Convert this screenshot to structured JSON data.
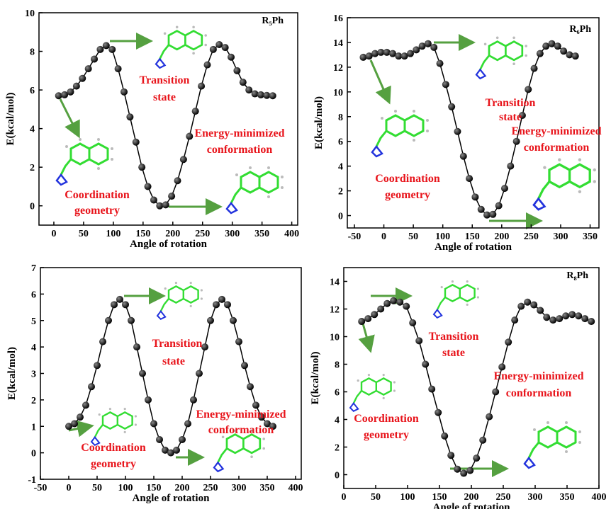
{
  "chart_data": [
    {
      "type": "line",
      "title": "R₅Ph",
      "x_label": "Angle of rotation",
      "y_label": "E(kcal/mol)",
      "x": [
        8,
        18,
        28,
        38,
        48,
        58,
        68,
        78,
        88,
        98,
        108,
        118,
        128,
        138,
        148,
        158,
        168,
        178,
        188,
        198,
        208,
        218,
        228,
        238,
        248,
        258,
        268,
        278,
        288,
        298,
        308,
        318,
        328,
        338,
        348,
        358,
        368
      ],
      "values": [
        5.7,
        5.75,
        5.9,
        6.2,
        6.6,
        7.1,
        7.6,
        8.1,
        8.3,
        8.1,
        7.1,
        5.9,
        4.6,
        3.3,
        2.0,
        1.0,
        0.3,
        0.0,
        0.05,
        0.5,
        1.3,
        2.4,
        3.6,
        4.9,
        6.2,
        7.3,
        8.1,
        8.35,
        8.2,
        7.7,
        7.0,
        6.4,
        6.0,
        5.8,
        5.75,
        5.72,
        5.7
      ],
      "color": "#000000",
      "xlim": [
        -25,
        410
      ],
      "xticks": [
        0,
        50,
        100,
        150,
        200,
        250,
        300,
        350,
        400
      ],
      "ylim": [
        -1,
        10
      ],
      "yticks": [
        0,
        2,
        4,
        6,
        8,
        10
      ],
      "annotations": [
        [
          "Transition",
          "state"
        ],
        [
          "Energy-minimized",
          "conformation"
        ],
        [
          "Coordination",
          "geometry"
        ]
      ]
    },
    {
      "type": "line",
      "title": "R₆Ph",
      "x_label": "Angle of rotation",
      "y_label": "E(kcal/mol)",
      "x": [
        -35,
        -25,
        -15,
        -5,
        5,
        15,
        25,
        35,
        45,
        55,
        65,
        75,
        85,
        95,
        105,
        115,
        125,
        135,
        145,
        155,
        165,
        175,
        185,
        195,
        205,
        215,
        225,
        235,
        245,
        255,
        265,
        275,
        285,
        295,
        305,
        315,
        325
      ],
      "values": [
        12.8,
        12.9,
        13.1,
        13.2,
        13.2,
        13.1,
        12.9,
        12.9,
        13.1,
        13.4,
        13.7,
        13.9,
        13.6,
        12.3,
        10.6,
        8.8,
        6.8,
        4.8,
        3.0,
        1.5,
        0.5,
        0.05,
        0.1,
        0.8,
        2.2,
        4.0,
        6.0,
        8.1,
        10.2,
        11.9,
        13.1,
        13.7,
        13.9,
        13.7,
        13.3,
        13.0,
        12.9
      ],
      "color": "#000000",
      "xlim": [
        -62,
        365
      ],
      "xticks": [
        -50,
        0,
        50,
        100,
        150,
        200,
        250,
        300,
        350
      ],
      "ylim": [
        -1,
        16
      ],
      "yticks": [
        0,
        2,
        4,
        6,
        8,
        10,
        12,
        14,
        16
      ],
      "annotations": [
        [
          "Transition",
          "state"
        ],
        [
          "Energy-minimized",
          "conformation"
        ],
        [
          "Coordination",
          "geometry"
        ]
      ]
    },
    {
      "type": "line",
      "x_label": "Angle of rotation",
      "y_label": "E(kcal/mol)",
      "x": [
        0,
        10,
        20,
        30,
        40,
        50,
        60,
        70,
        80,
        90,
        100,
        110,
        120,
        130,
        140,
        150,
        160,
        170,
        180,
        190,
        200,
        210,
        220,
        230,
        240,
        250,
        260,
        270,
        280,
        290,
        300,
        310,
        320,
        330,
        340,
        350,
        360
      ],
      "values": [
        1.0,
        1.1,
        1.35,
        1.8,
        2.5,
        3.3,
        4.2,
        5.0,
        5.6,
        5.8,
        5.6,
        5.0,
        4.0,
        3.0,
        2.0,
        1.1,
        0.5,
        0.1,
        0.0,
        0.1,
        0.5,
        1.1,
        2.0,
        3.0,
        4.0,
        5.0,
        5.6,
        5.8,
        5.6,
        5.0,
        4.2,
        3.3,
        2.5,
        1.8,
        1.35,
        1.1,
        1.0
      ],
      "color": "#000000",
      "xlim": [
        -50,
        410
      ],
      "xticks": [
        -50,
        0,
        50,
        100,
        150,
        200,
        250,
        300,
        350,
        400
      ],
      "ylim": [
        -1,
        7
      ],
      "yticks": [
        -1,
        0,
        1,
        2,
        3,
        4,
        5,
        6,
        7
      ],
      "annotations": [
        [
          "Transition",
          "state"
        ],
        [
          "Energy-minimized",
          "conformation"
        ],
        [
          "Coordination",
          "geometry"
        ]
      ]
    },
    {
      "type": "line",
      "title": "R₈Ph",
      "x_label": "Angle of rotation",
      "y_label": "E(kcal/mol)",
      "x": [
        28,
        38,
        48,
        58,
        68,
        78,
        88,
        98,
        108,
        118,
        128,
        138,
        148,
        158,
        168,
        178,
        188,
        198,
        208,
        218,
        228,
        238,
        248,
        258,
        268,
        278,
        288,
        298,
        308,
        318,
        328,
        338,
        348,
        358,
        368,
        378,
        388
      ],
      "values": [
        11.1,
        11.3,
        11.6,
        12.0,
        12.4,
        12.6,
        12.5,
        12.2,
        11.0,
        9.7,
        8.0,
        6.2,
        4.5,
        2.8,
        1.4,
        0.4,
        0.1,
        0.3,
        1.2,
        2.5,
        4.2,
        6.0,
        7.8,
        9.6,
        11.2,
        12.2,
        12.5,
        12.3,
        11.9,
        11.4,
        11.2,
        11.3,
        11.5,
        11.6,
        11.5,
        11.3,
        11.1
      ],
      "color": "#000000",
      "xlim": [
        0,
        400
      ],
      "xticks": [
        0,
        50,
        100,
        150,
        200,
        250,
        300,
        350,
        400
      ],
      "ylim": [
        -1,
        15
      ],
      "yticks": [
        0,
        2,
        4,
        6,
        8,
        10,
        12,
        14
      ],
      "annotations": [
        [
          "Transition",
          "state"
        ],
        [
          "Energy-minimized",
          "conformation"
        ],
        [
          "Coordination",
          "geometry"
        ]
      ]
    }
  ]
}
